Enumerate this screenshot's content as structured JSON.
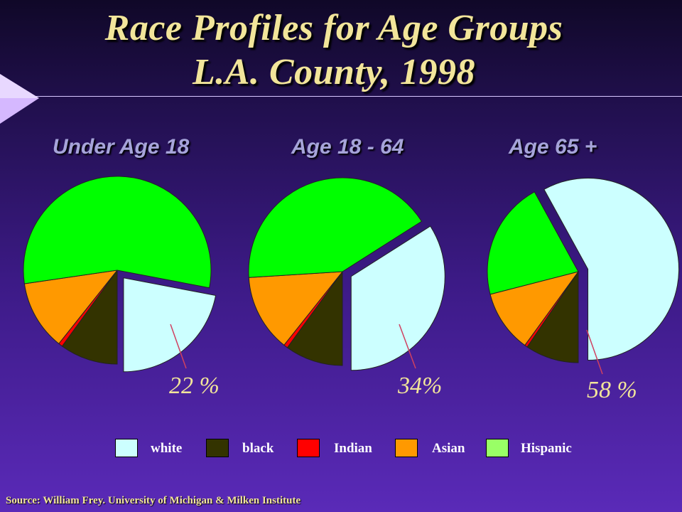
{
  "title_line1": "Race Profiles for Age Groups",
  "title_line2": "L.A. County, 1998",
  "source": "Source: William Frey. University of Michigan & Milken Institute",
  "colors": {
    "white": "#ccffff",
    "black": "#333300",
    "Indian": "#ff0000",
    "Asian": "#ff9900",
    "Hispanic": "#00ff00",
    "Hispanic_legend": "#99ff66",
    "accent_text": "#f2e59a",
    "chart_title_text": "#a6a4da"
  },
  "legend": [
    {
      "label": "white",
      "color": "#ccffff"
    },
    {
      "label": "black",
      "color": "#333300"
    },
    {
      "label": "Indian",
      "color": "#ff0000"
    },
    {
      "label": "Asian",
      "color": "#ff9900"
    },
    {
      "label": "Hispanic",
      "color": "#99ff66"
    }
  ],
  "chart_data": [
    {
      "type": "pie",
      "title": "Under Age 18",
      "categories": [
        "white",
        "black",
        "Indian",
        "Asian",
        "Hispanic"
      ],
      "values": [
        22,
        10,
        0.7,
        12,
        55.3
      ],
      "exploded": "white",
      "annotation": "22 %"
    },
    {
      "type": "pie",
      "title": "Age 18 - 64",
      "categories": [
        "white",
        "black",
        "Indian",
        "Asian",
        "Hispanic"
      ],
      "values": [
        34,
        10,
        0.7,
        13.3,
        42
      ],
      "exploded": "white",
      "annotation": "34%"
    },
    {
      "type": "pie",
      "title": "Age 65 +",
      "categories": [
        "white",
        "black",
        "Indian",
        "Asian",
        "Hispanic"
      ],
      "values": [
        58,
        9.5,
        0.5,
        11,
        21
      ],
      "exploded": "white",
      "annotation": "58 %"
    }
  ]
}
